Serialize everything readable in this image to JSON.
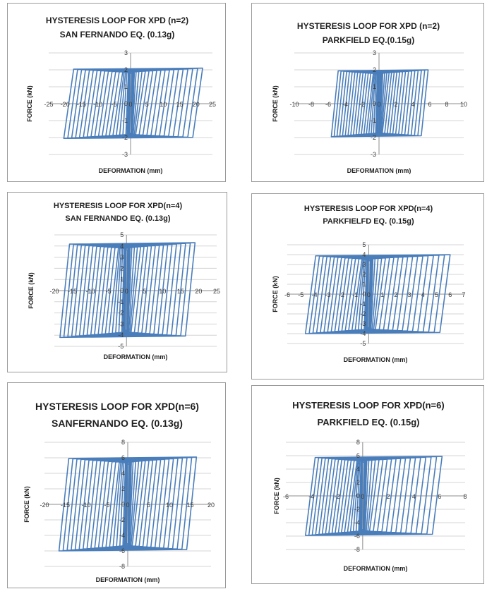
{
  "chart_data": [
    {
      "type": "line",
      "title": "HYSTERESIS LOOP FOR XPD (n=2)",
      "subtitle": "SAN FERNANDO EQ. (0.13g)",
      "xlabel": "DEFORMATION (mm)",
      "ylabel": "FORCE (kN)",
      "xlim": [
        -25,
        25
      ],
      "ylim": [
        -3,
        3
      ],
      "xticks": [
        -25,
        -20,
        -15,
        -10,
        -5,
        0,
        5,
        10,
        15,
        20,
        25
      ],
      "yticks": [
        -3,
        -2,
        -1,
        0,
        1,
        2,
        3
      ],
      "grid": "horizontal",
      "series": [
        {
          "color": "#4a7ebb",
          "x_range": [
            -21,
            22
          ],
          "y_range": [
            -2.05,
            2.1
          ]
        }
      ]
    },
    {
      "type": "line",
      "title": "HYSTERESIS LOOP FOR XPD (n=2)",
      "subtitle": "PARKFIELD EQ.(0.15g)",
      "xlabel": "DEFORMATION (mm)",
      "ylabel": "FORCE (kN)",
      "xlim": [
        -10,
        10
      ],
      "ylim": [
        -3,
        3
      ],
      "xticks": [
        -10,
        -8,
        -6,
        -4,
        -2,
        0,
        2,
        4,
        6,
        8,
        10
      ],
      "yticks": [
        -3,
        -2,
        -1,
        0,
        1,
        2,
        3
      ],
      "grid": "horizontal",
      "series": [
        {
          "color": "#4a7ebb",
          "x_range": [
            -5.8,
            5.8
          ],
          "y_range": [
            -1.95,
            2.0
          ]
        }
      ]
    },
    {
      "type": "line",
      "title": "HYSTERESIS LOOP FOR XPD(n=4)",
      "subtitle": "SAN FERNANDO EQ. (0.13g)",
      "xlabel": "DEFORMATION (mm)",
      "ylabel": "FORCE (kN)",
      "xlim": [
        -20,
        25
      ],
      "ylim": [
        -5,
        5
      ],
      "xticks": [
        -20,
        -15,
        -10,
        -5,
        0,
        5,
        10,
        15,
        20,
        25
      ],
      "yticks": [
        -5,
        -4,
        -3,
        -2,
        -1,
        0,
        1,
        2,
        3,
        4,
        5
      ],
      "grid": "horizontal",
      "series": [
        {
          "color": "#4a7ebb",
          "x_range": [
            -19,
            19
          ],
          "y_range": [
            -4.2,
            4.3
          ]
        }
      ]
    },
    {
      "type": "line",
      "title": "HYSTERESIS LOOP FOR XPD(n=4)",
      "subtitle": "PARKFIELFD EQ. (0.15g)",
      "xlabel": "DEFORMATION (mm)",
      "ylabel": "FORCE (kN)",
      "xlim": [
        -6,
        7
      ],
      "ylim": [
        -5,
        5
      ],
      "xticks": [
        -6,
        -5,
        -4,
        -3,
        -2,
        -1,
        0,
        1,
        2,
        3,
        4,
        5,
        6,
        7
      ],
      "yticks": [
        -5,
        -4,
        -3,
        -2,
        -1,
        0,
        1,
        2,
        3,
        4,
        5
      ],
      "grid": "horizontal",
      "series": [
        {
          "color": "#4a7ebb",
          "x_range": [
            -4.8,
            6.0
          ],
          "y_range": [
            -4.0,
            4.0
          ]
        }
      ]
    },
    {
      "type": "line",
      "title": "HYSTERESIS LOOP FOR XPD(n=6)",
      "subtitle": "SANFERNANDO EQ. (0.13g)",
      "xlabel": "DEFORMATION (mm)",
      "ylabel": "FORCE (kN)",
      "xlim": [
        -20,
        20
      ],
      "ylim": [
        -8,
        8
      ],
      "xticks": [
        -20,
        -15,
        -10,
        -5,
        0,
        5,
        10,
        15,
        20
      ],
      "yticks": [
        -8,
        -6,
        -4,
        -2,
        0,
        2,
        4,
        6,
        8
      ],
      "grid": "horizontal",
      "series": [
        {
          "color": "#4a7ebb",
          "x_range": [
            -17,
            16.5
          ],
          "y_range": [
            -6.0,
            6.1
          ]
        }
      ]
    },
    {
      "type": "line",
      "title": "HYSTERESIS LOOP FOR XPD(n=6)",
      "subtitle": "PARKFIELD EQ. (0.15g)",
      "xlabel": "DEFORMATION (mm)",
      "ylabel": "FORCE (kN)",
      "xlim": [
        -6,
        8
      ],
      "ylim": [
        -8,
        8
      ],
      "xticks": [
        -6,
        -4,
        -2,
        0,
        2,
        4,
        6,
        8
      ],
      "yticks": [
        -8,
        -6,
        -4,
        -2,
        0,
        2,
        4,
        6,
        8
      ],
      "grid": "horizontal",
      "series": [
        {
          "color": "#4a7ebb",
          "x_range": [
            -4.6,
            6.2
          ],
          "y_range": [
            -5.9,
            5.9
          ]
        }
      ]
    }
  ]
}
